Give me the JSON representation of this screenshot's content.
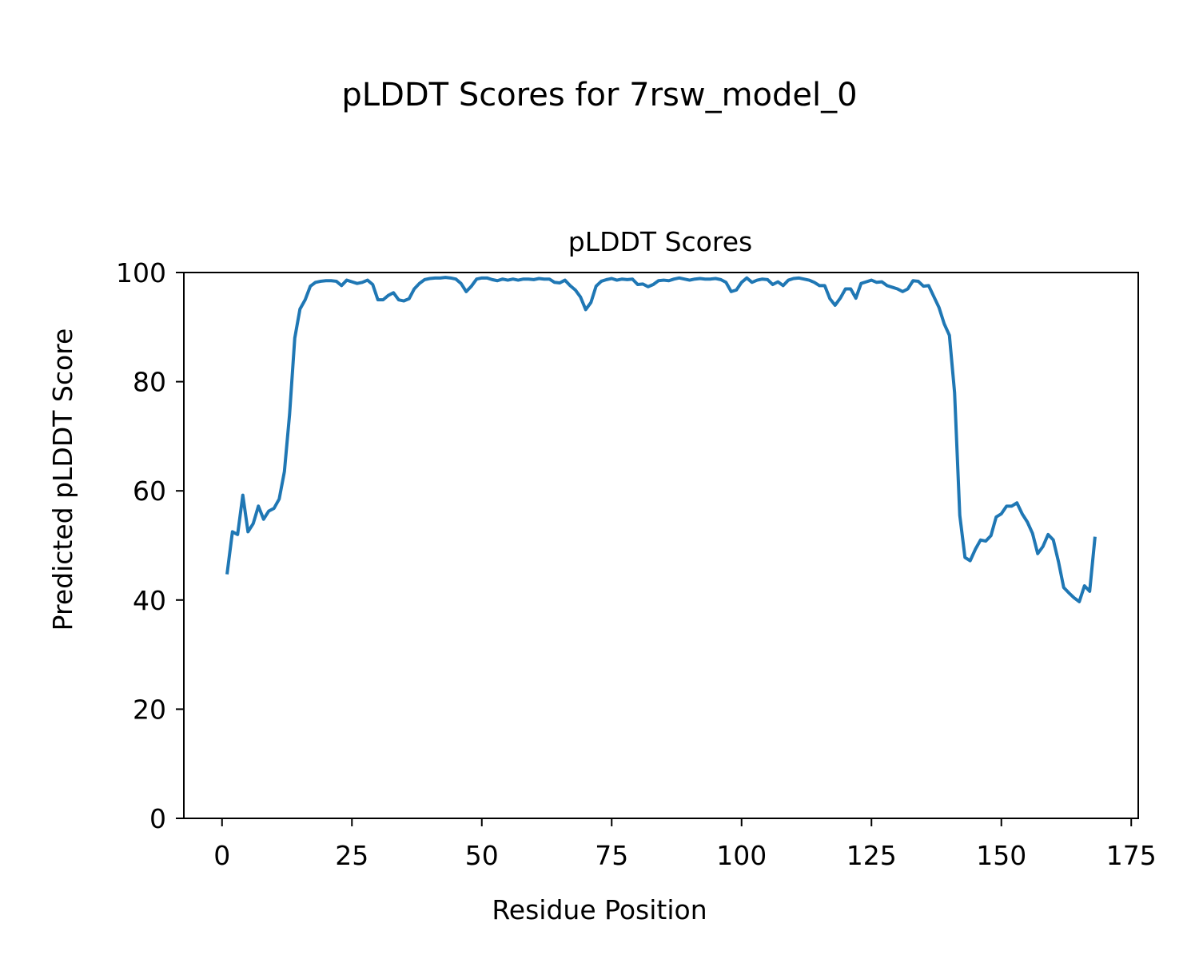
{
  "chart_data": {
    "type": "line",
    "suptitle": "pLDDT Scores for 7rsw_model_0",
    "title": "pLDDT Scores",
    "xlabel": "Residue Position",
    "ylabel": "Predicted pLDDT Score",
    "xlim": [
      -7.35,
      176.35
    ],
    "ylim": [
      0,
      100
    ],
    "xticks": [
      0,
      25,
      50,
      75,
      100,
      125,
      150,
      175
    ],
    "yticks": [
      0,
      20,
      40,
      60,
      80,
      100
    ],
    "grid": false,
    "line_color": "#1f77b4",
    "series": [
      {
        "x": [
          1,
          2,
          3,
          4,
          5,
          6,
          7,
          8,
          9,
          10,
          11,
          12,
          13,
          14,
          15,
          16,
          17,
          18,
          19,
          20,
          21,
          22,
          23,
          24,
          25,
          26,
          27,
          28,
          29,
          30,
          31,
          32,
          33,
          34,
          35,
          36,
          37,
          38,
          39,
          40,
          41,
          42,
          43,
          44,
          45,
          46,
          47,
          48,
          49,
          50,
          51,
          52,
          53,
          54,
          55,
          56,
          57,
          58,
          59,
          60,
          61,
          62,
          63,
          64,
          65,
          66,
          67,
          68,
          69,
          70,
          71,
          72,
          73,
          74,
          75,
          76,
          77,
          78,
          79,
          80,
          81,
          82,
          83,
          84,
          85,
          86,
          87,
          88,
          89,
          90,
          91,
          92,
          93,
          94,
          95,
          96,
          97,
          98,
          99,
          100,
          101,
          102,
          103,
          104,
          105,
          106,
          107,
          108,
          109,
          110,
          111,
          112,
          113,
          114,
          115,
          116,
          117,
          118,
          119,
          120,
          121,
          122,
          123,
          124,
          125,
          126,
          127,
          128,
          129,
          130,
          131,
          132,
          133,
          134,
          135,
          136,
          137,
          138,
          139,
          140,
          141,
          142,
          143,
          144,
          145,
          146,
          147,
          148,
          149,
          150,
          151,
          152,
          153,
          154,
          155,
          156,
          157,
          158,
          159,
          160,
          161,
          162,
          163,
          164,
          165,
          166,
          167,
          168
        ],
        "y": [
          45.0,
          52.5,
          52.0,
          59.2,
          52.5,
          54.0,
          57.2,
          54.8,
          56.3,
          56.8,
          58.5,
          63.5,
          74.0,
          88.0,
          93.3,
          95.0,
          97.5,
          98.2,
          98.4,
          98.5,
          98.5,
          98.4,
          97.6,
          98.6,
          98.3,
          98.0,
          98.2,
          98.6,
          97.8,
          95.0,
          95.0,
          95.8,
          96.3,
          95.0,
          94.8,
          95.2,
          97.0,
          98.0,
          98.7,
          98.9,
          99.0,
          99.0,
          99.1,
          99.0,
          98.8,
          98.0,
          96.5,
          97.5,
          98.8,
          99.0,
          99.0,
          98.7,
          98.5,
          98.8,
          98.6,
          98.8,
          98.6,
          98.8,
          98.8,
          98.7,
          98.9,
          98.8,
          98.8,
          98.2,
          98.1,
          98.6,
          97.6,
          96.8,
          95.5,
          93.2,
          94.5,
          97.5,
          98.4,
          98.7,
          98.9,
          98.6,
          98.8,
          98.7,
          98.8,
          97.8,
          97.9,
          97.4,
          97.8,
          98.5,
          98.6,
          98.5,
          98.8,
          99.0,
          98.8,
          98.6,
          98.8,
          98.9,
          98.8,
          98.8,
          98.9,
          98.7,
          98.2,
          96.5,
          96.8,
          98.2,
          99.0,
          98.2,
          98.6,
          98.8,
          98.7,
          97.8,
          98.3,
          97.6,
          98.6,
          98.9,
          99.0,
          98.8,
          98.6,
          98.2,
          97.6,
          97.6,
          95.2,
          94.0,
          95.3,
          97.0,
          97.0,
          95.3,
          98.0,
          98.3,
          98.6,
          98.2,
          98.3,
          97.6,
          97.3,
          97.0,
          96.5,
          97.0,
          98.5,
          98.4,
          97.5,
          97.6,
          95.6,
          93.6,
          90.6,
          88.5,
          78.0,
          55.5,
          47.8,
          47.2,
          49.3,
          51.0,
          50.8,
          51.8,
          55.2,
          55.8,
          57.2,
          57.2,
          57.8,
          55.8,
          54.3,
          52.2,
          48.5,
          49.8,
          52.0,
          51.0,
          47.0,
          42.3,
          41.3,
          40.4,
          39.7,
          42.6,
          41.6,
          51.3
        ]
      }
    ]
  }
}
